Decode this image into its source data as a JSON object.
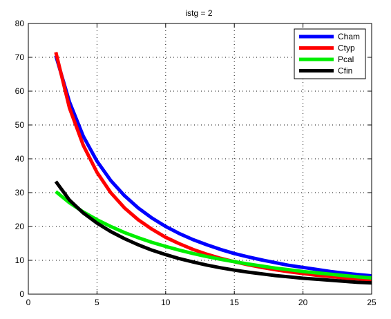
{
  "chart_data": {
    "type": "line",
    "title": "istg = 2",
    "xlabel": "",
    "ylabel": "",
    "xlim": [
      0,
      25
    ],
    "ylim": [
      0,
      80
    ],
    "xticks": [
      0,
      5,
      10,
      15,
      20,
      25
    ],
    "yticks": [
      0,
      10,
      20,
      30,
      40,
      50,
      60,
      70,
      80
    ],
    "grid": true,
    "legend_position": "top-right",
    "series": [
      {
        "name": "Cham",
        "color": "#0000ff",
        "x": [
          2,
          3,
          4,
          5,
          6,
          7,
          8,
          9,
          10,
          11,
          12,
          13,
          14,
          15,
          16,
          17,
          18,
          19,
          20,
          21,
          22,
          23,
          24,
          25
        ],
        "y": [
          70.5,
          56.8,
          46.7,
          39.3,
          33.6,
          29.1,
          25.5,
          22.5,
          20.0,
          17.9,
          16.1,
          14.6,
          13.2,
          12.0,
          11.0,
          10.1,
          9.3,
          8.5,
          7.9,
          7.3,
          6.7,
          6.2,
          5.8,
          5.4
        ]
      },
      {
        "name": "Ctyp",
        "color": "#ff0000",
        "x": [
          2,
          3,
          4,
          5,
          6,
          7,
          8,
          9,
          10,
          11,
          12,
          13,
          14,
          15,
          16,
          17,
          18,
          19,
          20,
          21,
          22,
          23,
          24,
          25
        ],
        "y": [
          71.5,
          55.0,
          44.0,
          36.0,
          30.0,
          25.5,
          22.0,
          19.2,
          16.8,
          14.9,
          13.2,
          11.8,
          10.6,
          9.6,
          8.7,
          7.9,
          7.2,
          6.6,
          6.1,
          5.6,
          5.2,
          4.8,
          4.5,
          4.2
        ]
      },
      {
        "name": "Pcal",
        "color": "#00ee00",
        "x": [
          2,
          3,
          4,
          5,
          6,
          7,
          8,
          9,
          10,
          11,
          12,
          13,
          14,
          15,
          16,
          17,
          18,
          19,
          20,
          21,
          22,
          23,
          24,
          25
        ],
        "y": [
          30.3,
          27.0,
          24.3,
          22.0,
          20.0,
          18.2,
          16.7,
          15.3,
          14.1,
          13.0,
          12.0,
          11.1,
          10.3,
          9.6,
          8.9,
          8.3,
          7.7,
          7.2,
          6.7,
          6.3,
          5.9,
          5.5,
          5.1,
          4.8
        ]
      },
      {
        "name": "Cfin",
        "color": "#000000",
        "x": [
          2,
          3,
          4,
          5,
          6,
          7,
          8,
          9,
          10,
          11,
          12,
          13,
          14,
          15,
          16,
          17,
          18,
          19,
          20,
          21,
          22,
          23,
          24,
          25
        ],
        "y": [
          33.3,
          27.8,
          24.0,
          21.0,
          18.5,
          16.4,
          14.6,
          13.0,
          11.7,
          10.5,
          9.5,
          8.6,
          7.8,
          7.1,
          6.5,
          6.0,
          5.5,
          5.1,
          4.7,
          4.4,
          4.1,
          3.8,
          3.5,
          3.3
        ]
      }
    ]
  }
}
